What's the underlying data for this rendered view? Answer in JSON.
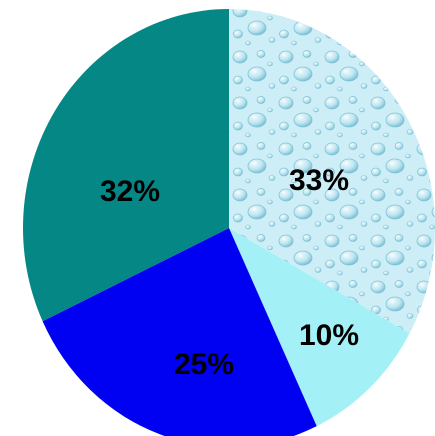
{
  "chart_data": {
    "type": "pie",
    "title": "",
    "legend": "none",
    "slices": [
      {
        "label": "33%",
        "value": 33,
        "color": "#c9ecf5",
        "texture": "water-droplets"
      },
      {
        "label": "10%",
        "value": 10,
        "color": "#a3f0f7"
      },
      {
        "label": "25%",
        "value": 25,
        "color": "#0000f2"
      },
      {
        "label": "32%",
        "value": 32,
        "color": "#058785"
      }
    ]
  }
}
